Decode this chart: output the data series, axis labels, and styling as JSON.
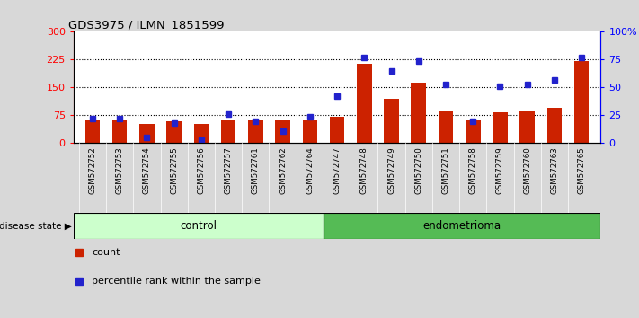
{
  "title": "GDS3975 / ILMN_1851599",
  "samples": [
    "GSM572752",
    "GSM572753",
    "GSM572754",
    "GSM572755",
    "GSM572756",
    "GSM572757",
    "GSM572761",
    "GSM572762",
    "GSM572764",
    "GSM572747",
    "GSM572748",
    "GSM572749",
    "GSM572750",
    "GSM572751",
    "GSM572758",
    "GSM572759",
    "GSM572760",
    "GSM572763",
    "GSM572765"
  ],
  "counts": [
    62,
    62,
    52,
    58,
    52,
    62,
    62,
    62,
    62,
    70,
    215,
    120,
    162,
    85,
    62,
    82,
    85,
    95,
    220
  ],
  "percentiles": [
    22,
    22,
    5,
    18,
    3,
    26,
    20,
    11,
    24,
    42,
    77,
    65,
    74,
    53,
    20,
    51,
    53,
    57,
    77
  ],
  "groups": [
    "control",
    "control",
    "control",
    "control",
    "control",
    "control",
    "control",
    "control",
    "control",
    "endometrioma",
    "endometrioma",
    "endometrioma",
    "endometrioma",
    "endometrioma",
    "endometrioma",
    "endometrioma",
    "endometrioma",
    "endometrioma",
    "endometrioma"
  ],
  "control_color_light": "#ccffcc",
  "endometrioma_color": "#55bb55",
  "bar_color": "#cc2200",
  "dot_color": "#2222cc",
  "ylim_left": [
    0,
    300
  ],
  "ylim_right": [
    0,
    100
  ],
  "yticks_left": [
    0,
    75,
    150,
    225,
    300
  ],
  "yticks_right": [
    0,
    25,
    50,
    75,
    100
  ],
  "ytick_labels_right": [
    "0",
    "25",
    "50",
    "75",
    "100%"
  ],
  "background_color": "#d8d8d8",
  "plot_bg_color": "#ffffff",
  "xtick_bg_color": "#c8c8c8",
  "n_control": 9,
  "n_endometrioma": 10,
  "hline_vals": [
    75,
    150,
    225
  ]
}
